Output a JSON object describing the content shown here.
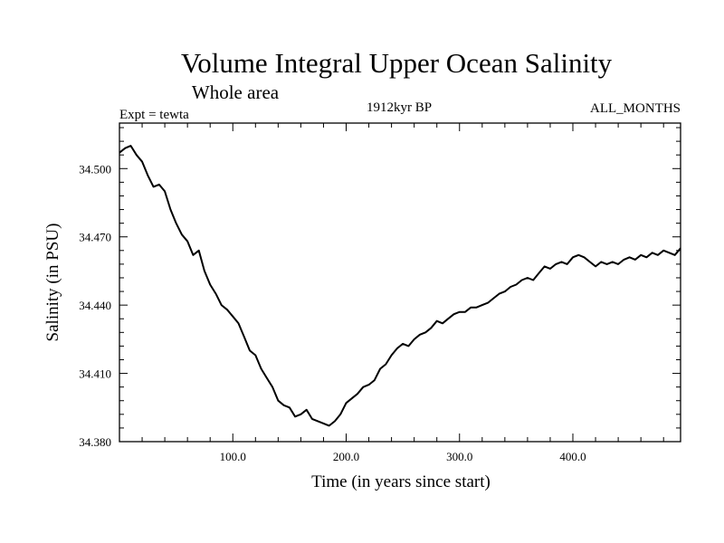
{
  "chart_data": {
    "type": "line",
    "title": "Volume Integral Upper Ocean Salinity",
    "subtitle": "Whole area",
    "left_label": "Expt = tewta",
    "center_label": "1912kyr BP",
    "right_label": "ALL_MONTHS",
    "xlabel": "Time (in years since start)",
    "ylabel": "Salinity (in PSU)",
    "xlim": [
      0,
      495
    ],
    "ylim": [
      34.38,
      34.52
    ],
    "xticks": [
      100,
      200,
      300,
      400
    ],
    "xtick_labels": [
      "100.0",
      "200.0",
      "300.0",
      "400.0"
    ],
    "yticks": [
      34.38,
      34.41,
      34.44,
      34.47,
      34.5
    ],
    "ytick_labels": [
      "34.380",
      "34.410",
      "34.440",
      "34.470",
      "34.500"
    ],
    "grid": false,
    "series": [
      {
        "name": "Salinity",
        "x": [
          0,
          5,
          10,
          15,
          20,
          25,
          30,
          35,
          40,
          45,
          50,
          55,
          60,
          65,
          70,
          75,
          80,
          85,
          90,
          95,
          100,
          105,
          110,
          115,
          120,
          125,
          130,
          135,
          140,
          145,
          150,
          155,
          160,
          165,
          170,
          175,
          180,
          185,
          190,
          195,
          200,
          205,
          210,
          215,
          220,
          225,
          230,
          235,
          240,
          245,
          250,
          255,
          260,
          265,
          270,
          275,
          280,
          285,
          290,
          295,
          300,
          305,
          310,
          315,
          320,
          325,
          330,
          335,
          340,
          345,
          350,
          355,
          360,
          365,
          370,
          375,
          380,
          385,
          390,
          395,
          400,
          405,
          410,
          415,
          420,
          425,
          430,
          435,
          440,
          445,
          450,
          455,
          460,
          465,
          470,
          475,
          480,
          485,
          490,
          495
        ],
        "values": [
          34.507,
          34.509,
          34.51,
          34.506,
          34.503,
          34.497,
          34.492,
          34.493,
          34.49,
          34.482,
          34.476,
          34.471,
          34.468,
          34.462,
          34.464,
          34.455,
          34.449,
          34.445,
          34.44,
          34.438,
          34.435,
          34.432,
          34.426,
          34.42,
          34.418,
          34.412,
          34.408,
          34.404,
          34.398,
          34.396,
          34.395,
          34.391,
          34.392,
          34.394,
          34.39,
          34.389,
          34.388,
          34.387,
          34.389,
          34.392,
          34.397,
          34.399,
          34.401,
          34.404,
          34.405,
          34.407,
          34.412,
          34.414,
          34.418,
          34.421,
          34.423,
          34.422,
          34.425,
          34.427,
          34.428,
          34.43,
          34.433,
          34.432,
          34.434,
          34.436,
          34.437,
          34.437,
          34.439,
          34.439,
          34.44,
          34.441,
          34.443,
          34.445,
          34.446,
          34.448,
          34.449,
          34.451,
          34.452,
          34.451,
          34.454,
          34.457,
          34.456,
          34.458,
          34.459,
          34.458,
          34.461,
          34.462,
          34.461,
          34.459,
          34.457,
          34.459,
          34.458,
          34.459,
          34.458,
          34.46,
          34.461,
          34.46,
          34.462,
          34.461,
          34.463,
          34.462,
          34.464,
          34.463,
          34.462,
          34.465
        ]
      }
    ]
  }
}
